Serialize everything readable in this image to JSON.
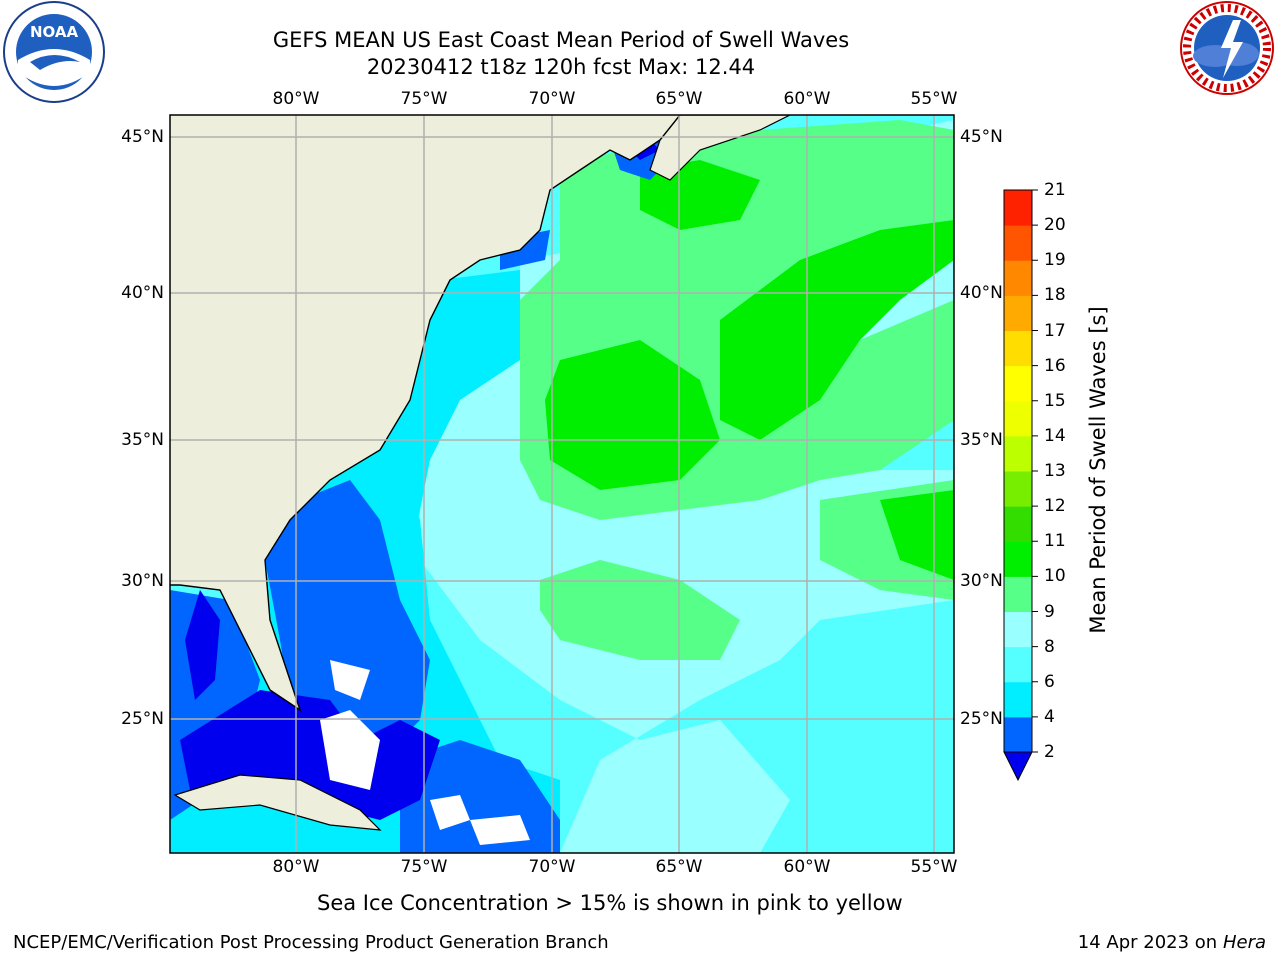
{
  "title": {
    "line1": "GEFS MEAN US East Coast Mean Period of Swell Waves",
    "line2": "20230412 t18z 120h fcst   Max: 12.44"
  },
  "logos": {
    "left": "NOAA",
    "left_ring": "NATIONAL OCEANIC AND ATMOSPHERIC ADMINISTRATION · U.S. DEPARTMENT OF COMMERCE",
    "right_ring": "NATIONAL WEATHER SERVICE"
  },
  "map": {
    "lon_labels": [
      "80°W",
      "75°W",
      "70°W",
      "65°W",
      "60°W",
      "55°W"
    ],
    "lat_labels": [
      "45°N",
      "40°N",
      "35°N",
      "30°N",
      "25°N"
    ],
    "colors": {
      "land": "#eeeedd",
      "coast": "#000000",
      "grid": "#b0b0b0"
    }
  },
  "colorbar": {
    "label": "Mean Period of Swell Waves [s]",
    "ticks": [
      "2",
      "4",
      "6",
      "8",
      "9",
      "10",
      "11",
      "12",
      "13",
      "14",
      "15",
      "16",
      "17",
      "18",
      "19",
      "20",
      "21"
    ],
    "colors": [
      "#0066ff",
      "#00eeff",
      "#55ffff",
      "#99ffff",
      "#55ff88",
      "#00ee00",
      "#33dd00",
      "#77ee00",
      "#bbff00",
      "#eeff00",
      "#ffff00",
      "#ffdd00",
      "#ffaa00",
      "#ff8800",
      "#ff5500",
      "#ff2200",
      "#ff0000"
    ],
    "extend_color": "#0000ee"
  },
  "footer": {
    "sea_ice": "Sea Ice Concentration > 15% is shown in pink to yellow",
    "left": "NCEP/EMC/Verification Post Processing Product Generation Branch",
    "right_prefix": "14 Apr 2023 on ",
    "right_host": "Hera"
  }
}
